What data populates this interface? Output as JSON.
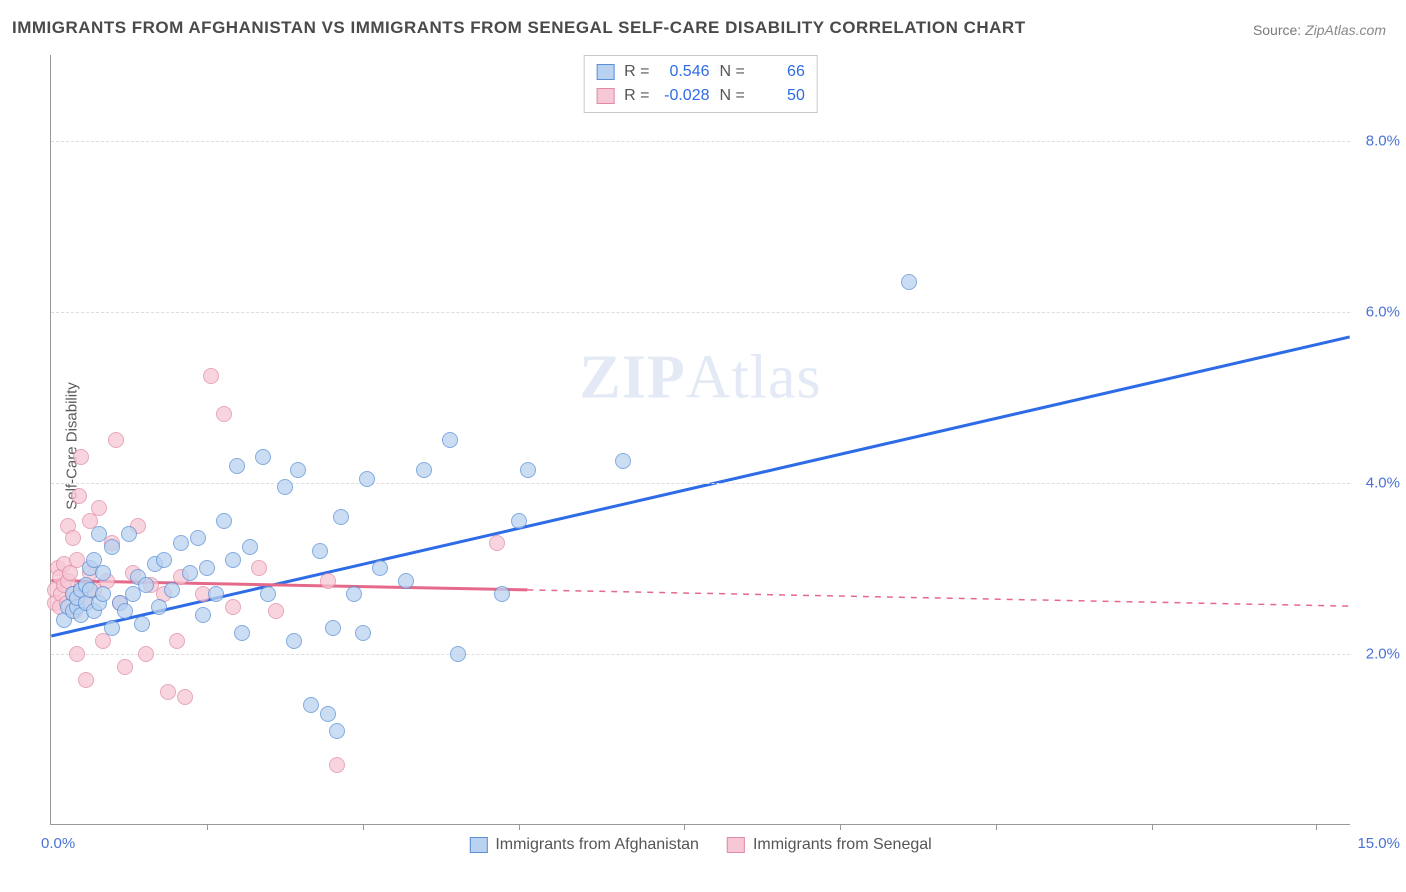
{
  "title": "IMMIGRANTS FROM AFGHANISTAN VS IMMIGRANTS FROM SENEGAL SELF-CARE DISABILITY CORRELATION CHART",
  "source_label": "Source:",
  "source_value": "ZipAtlas.com",
  "ylabel": "Self-Care Disability",
  "watermark_a": "ZIP",
  "watermark_b": "Atlas",
  "chart": {
    "type": "scatter",
    "xlim": [
      0,
      15
    ],
    "ylim": [
      0,
      9
    ],
    "x_axis_label_left": "0.0%",
    "x_axis_label_right": "15.0%",
    "x_ticks": [
      1.8,
      3.6,
      5.4,
      7.3,
      9.1,
      10.9,
      12.7,
      14.6
    ],
    "y_ticks": [
      {
        "v": 2.0,
        "label": "2.0%"
      },
      {
        "v": 4.0,
        "label": "4.0%"
      },
      {
        "v": 6.0,
        "label": "6.0%"
      },
      {
        "v": 8.0,
        "label": "8.0%"
      }
    ],
    "grid_color": "#dddddd",
    "background_color": "#ffffff",
    "axis_color": "#999999",
    "tick_label_color": "#4a72d4",
    "series": {
      "afghanistan": {
        "label": "Immigrants from Afghanistan",
        "fill": "#b9d2f0",
        "stroke": "#5a8fd6",
        "line_color": "#2e6be6",
        "R": "0.546",
        "N": "66",
        "trend": {
          "x1": 0,
          "y1": 2.2,
          "x2": 15,
          "y2": 5.7,
          "solid_until_x": 15
        },
        "points": [
          [
            0.15,
            2.4
          ],
          [
            0.2,
            2.55
          ],
          [
            0.25,
            2.7
          ],
          [
            0.25,
            2.5
          ],
          [
            0.3,
            2.55
          ],
          [
            0.3,
            2.65
          ],
          [
            0.35,
            2.75
          ],
          [
            0.35,
            2.45
          ],
          [
            0.4,
            2.8
          ],
          [
            0.4,
            2.6
          ],
          [
            0.45,
            3.0
          ],
          [
            0.45,
            2.75
          ],
          [
            0.5,
            2.5
          ],
          [
            0.5,
            3.1
          ],
          [
            0.55,
            2.6
          ],
          [
            0.55,
            3.4
          ],
          [
            0.6,
            2.7
          ],
          [
            0.6,
            2.95
          ],
          [
            0.7,
            3.25
          ],
          [
            0.7,
            2.3
          ],
          [
            0.8,
            2.6
          ],
          [
            0.85,
            2.5
          ],
          [
            0.9,
            3.4
          ],
          [
            0.95,
            2.7
          ],
          [
            1.0,
            2.9
          ],
          [
            1.05,
            2.35
          ],
          [
            1.1,
            2.8
          ],
          [
            1.2,
            3.05
          ],
          [
            1.25,
            2.55
          ],
          [
            1.3,
            3.1
          ],
          [
            1.4,
            2.75
          ],
          [
            1.5,
            3.3
          ],
          [
            1.6,
            2.95
          ],
          [
            1.7,
            3.35
          ],
          [
            1.75,
            2.45
          ],
          [
            1.8,
            3.0
          ],
          [
            1.9,
            2.7
          ],
          [
            2.0,
            3.55
          ],
          [
            2.1,
            3.1
          ],
          [
            2.15,
            4.2
          ],
          [
            2.2,
            2.25
          ],
          [
            2.3,
            3.25
          ],
          [
            2.45,
            4.3
          ],
          [
            2.5,
            2.7
          ],
          [
            2.7,
            3.95
          ],
          [
            2.8,
            2.15
          ],
          [
            2.85,
            4.15
          ],
          [
            3.0,
            1.4
          ],
          [
            3.1,
            3.2
          ],
          [
            3.2,
            1.3
          ],
          [
            3.25,
            2.3
          ],
          [
            3.3,
            1.1
          ],
          [
            3.35,
            3.6
          ],
          [
            3.5,
            2.7
          ],
          [
            3.6,
            2.25
          ],
          [
            3.65,
            4.05
          ],
          [
            3.8,
            3.0
          ],
          [
            4.1,
            2.85
          ],
          [
            4.3,
            4.15
          ],
          [
            4.6,
            4.5
          ],
          [
            4.7,
            2.0
          ],
          [
            5.2,
            2.7
          ],
          [
            5.4,
            3.55
          ],
          [
            5.5,
            4.15
          ],
          [
            6.6,
            4.25
          ],
          [
            9.9,
            6.35
          ]
        ]
      },
      "senegal": {
        "label": "Immigrants from Senegal",
        "fill": "#f6c7d4",
        "stroke": "#e18aa3",
        "line_color": "#e56a8a",
        "R": "-0.028",
        "N": "50",
        "trend": {
          "x1": 0,
          "y1": 2.85,
          "x2": 15,
          "y2": 2.55,
          "solid_until_x": 5.5
        },
        "points": [
          [
            0.05,
            2.75
          ],
          [
            0.05,
            2.6
          ],
          [
            0.08,
            3.0
          ],
          [
            0.1,
            2.9
          ],
          [
            0.1,
            2.55
          ],
          [
            0.12,
            2.7
          ],
          [
            0.15,
            2.8
          ],
          [
            0.15,
            3.05
          ],
          [
            0.18,
            2.6
          ],
          [
            0.2,
            2.85
          ],
          [
            0.2,
            3.5
          ],
          [
            0.22,
            2.95
          ],
          [
            0.25,
            2.7
          ],
          [
            0.25,
            3.35
          ],
          [
            0.28,
            2.5
          ],
          [
            0.3,
            3.1
          ],
          [
            0.3,
            2.0
          ],
          [
            0.32,
            3.85
          ],
          [
            0.35,
            2.75
          ],
          [
            0.35,
            4.3
          ],
          [
            0.4,
            2.6
          ],
          [
            0.4,
            1.7
          ],
          [
            0.45,
            2.95
          ],
          [
            0.45,
            3.55
          ],
          [
            0.5,
            2.75
          ],
          [
            0.55,
            3.7
          ],
          [
            0.6,
            2.15
          ],
          [
            0.65,
            2.85
          ],
          [
            0.7,
            3.3
          ],
          [
            0.75,
            4.5
          ],
          [
            0.8,
            2.6
          ],
          [
            0.85,
            1.85
          ],
          [
            0.95,
            2.95
          ],
          [
            1.0,
            3.5
          ],
          [
            1.1,
            2.0
          ],
          [
            1.15,
            2.8
          ],
          [
            1.3,
            2.7
          ],
          [
            1.35,
            1.55
          ],
          [
            1.45,
            2.15
          ],
          [
            1.5,
            2.9
          ],
          [
            1.55,
            1.5
          ],
          [
            1.75,
            2.7
          ],
          [
            1.85,
            5.25
          ],
          [
            2.0,
            4.8
          ],
          [
            2.1,
            2.55
          ],
          [
            2.4,
            3.0
          ],
          [
            2.6,
            2.5
          ],
          [
            3.2,
            2.85
          ],
          [
            3.3,
            0.7
          ],
          [
            5.15,
            3.3
          ]
        ]
      }
    }
  },
  "stats_box": {
    "R_label": "R =",
    "N_label": "N ="
  }
}
